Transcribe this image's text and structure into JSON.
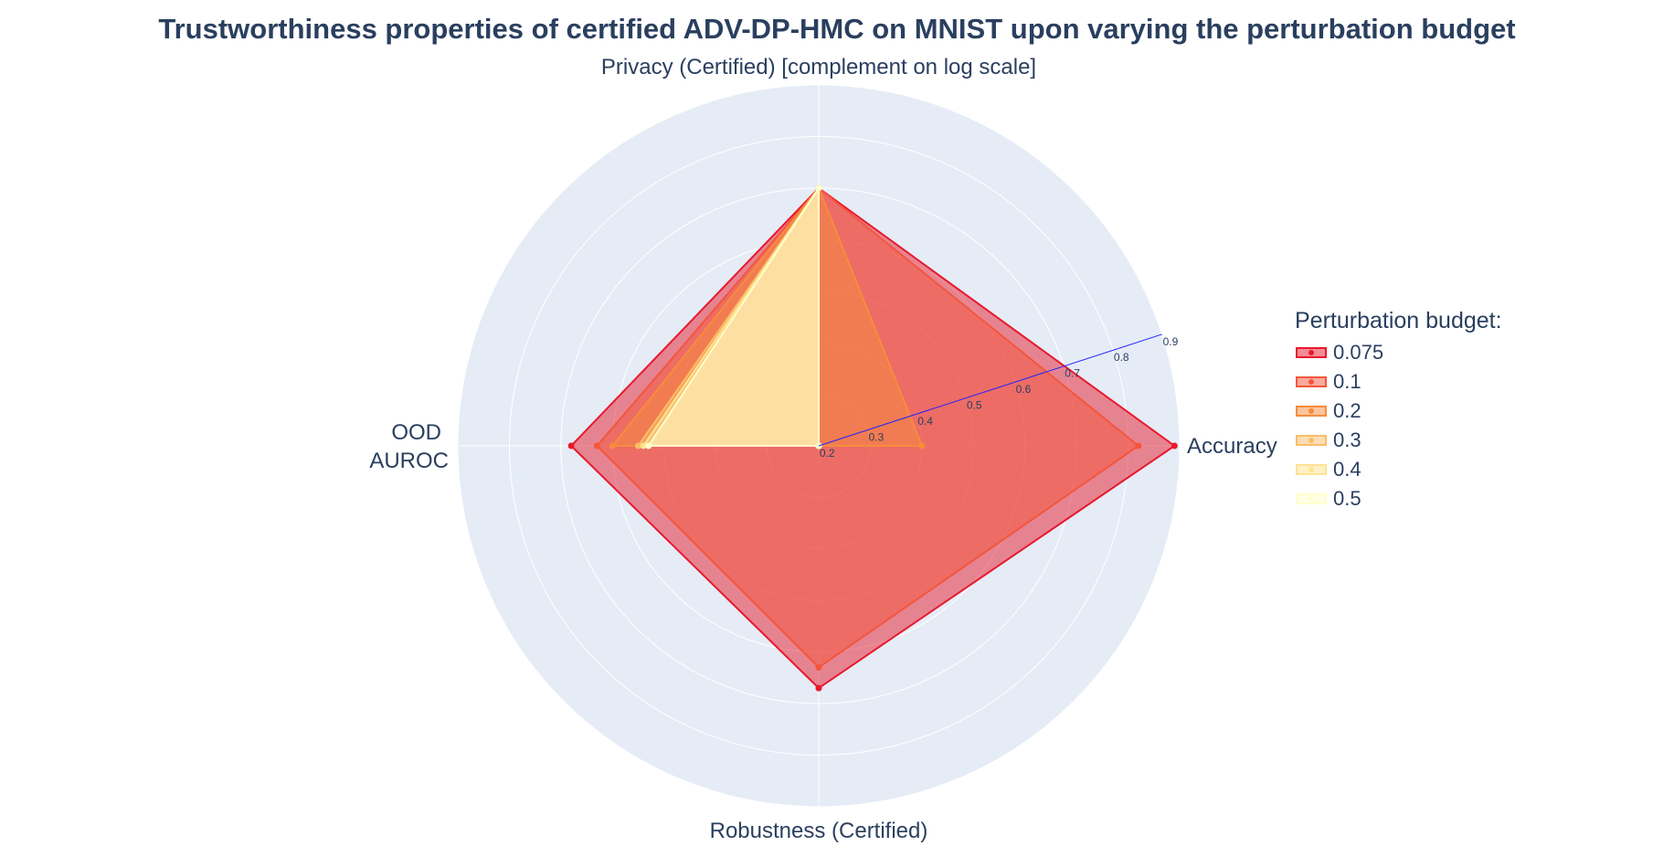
{
  "chart_data": {
    "type": "radar",
    "title": "Trustworthiness properties of certified ADV-DP-HMC on MNIST upon varying the perturbation budget",
    "axes": [
      {
        "key": "accuracy",
        "label": "Accuracy"
      },
      {
        "key": "privacy",
        "label": "Privacy (Certified) [complement on log scale]"
      },
      {
        "key": "ood",
        "label": "OOD\nAUROC"
      },
      {
        "key": "robustness",
        "label": "Robustness (Certified)"
      }
    ],
    "radial_range": [
      0.2,
      0.9
    ],
    "radial_ticks": [
      "0.2",
      "0.3",
      "0.4",
      "0.5",
      "0.6",
      "0.7",
      "0.8",
      "0.9"
    ],
    "grid": true,
    "legend_title": "Perturbation budget:",
    "legend_position": "right",
    "series": [
      {
        "name": "0.075",
        "color": "#e8192c",
        "values": {
          "accuracy": 0.89,
          "privacy": 0.7,
          "ood": 0.68,
          "robustness": 0.67
        }
      },
      {
        "name": "0.1",
        "color": "#f4563b",
        "values": {
          "accuracy": 0.82,
          "privacy": 0.7,
          "ood": 0.63,
          "robustness": 0.63
        }
      },
      {
        "name": "0.2",
        "color": "#f78c3c",
        "values": {
          "accuracy": 0.4,
          "privacy": 0.7,
          "ood": 0.6,
          "robustness": 0.2
        }
      },
      {
        "name": "0.3",
        "color": "#fbbd68",
        "values": {
          "accuracy": 0.2,
          "privacy": 0.7,
          "ood": 0.55,
          "robustness": 0.2
        }
      },
      {
        "name": "0.4",
        "color": "#fde490",
        "values": {
          "accuracy": 0.2,
          "privacy": 0.7,
          "ood": 0.54,
          "robustness": 0.2
        }
      },
      {
        "name": "0.5",
        "color": "#ffffcc",
        "values": {
          "accuracy": 0.2,
          "privacy": 0.7,
          "ood": 0.53,
          "robustness": 0.2
        }
      }
    ]
  }
}
